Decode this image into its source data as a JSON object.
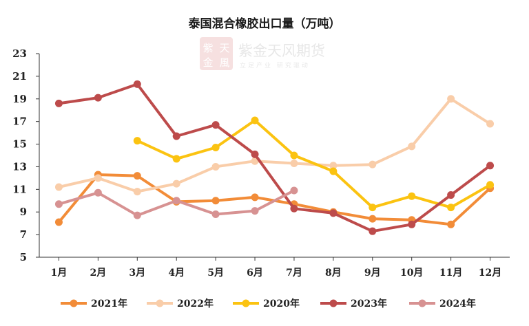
{
  "chart_data": {
    "type": "line",
    "title": "泰国混合橡胶出口量（万吨）",
    "categories": [
      "1月",
      "2月",
      "3月",
      "4月",
      "5月",
      "6月",
      "7月",
      "8月",
      "9月",
      "10月",
      "11月",
      "12月"
    ],
    "ylim": [
      5,
      23
    ],
    "yticks": [
      5,
      7,
      9,
      11,
      13,
      15,
      17,
      19,
      21,
      23
    ],
    "grid": false,
    "legend_position": "bottom",
    "series": [
      {
        "name": "2021年",
        "color": "#f28c38",
        "values": [
          8.1,
          12.3,
          12.2,
          9.9,
          10.0,
          10.3,
          9.7,
          9.0,
          8.4,
          8.3,
          7.9,
          11.1
        ]
      },
      {
        "name": "2022年",
        "color": "#f9cda9",
        "values": [
          11.2,
          12.0,
          10.8,
          11.5,
          13.0,
          13.5,
          13.3,
          13.1,
          13.2,
          14.8,
          19.0,
          16.8
        ]
      },
      {
        "name": "2020年",
        "color": "#fbc311",
        "values": [
          null,
          null,
          15.3,
          13.7,
          14.7,
          17.1,
          14.0,
          12.6,
          9.4,
          10.4,
          9.4,
          11.4
        ]
      },
      {
        "name": "2023年",
        "color": "#bd4b4b",
        "values": [
          18.6,
          19.1,
          20.3,
          15.7,
          16.7,
          14.1,
          9.3,
          8.9,
          7.3,
          7.9,
          10.5,
          13.1
        ]
      },
      {
        "name": "2024年",
        "color": "#d79292",
        "values": [
          9.7,
          10.7,
          8.7,
          10.0,
          8.8,
          9.1,
          10.9,
          null,
          null,
          null,
          null,
          null
        ]
      }
    ]
  },
  "watermark": {
    "logo_chars": [
      "紫",
      "天",
      "金",
      "風"
    ],
    "brand": "紫金天风期货",
    "slogan": "立足产业 研究驱动"
  }
}
